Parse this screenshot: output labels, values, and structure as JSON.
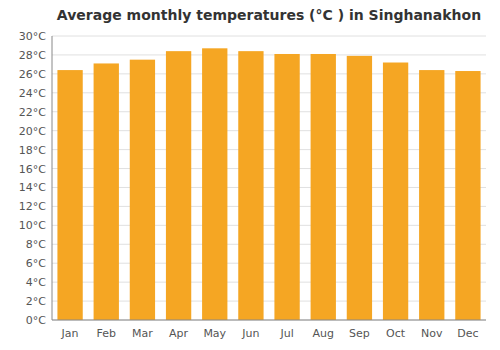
{
  "chart_data": {
    "type": "bar",
    "title": "Average monthly temperatures (°C ) in Singhanakhon",
    "categories": [
      "Jan",
      "Feb",
      "Mar",
      "Apr",
      "May",
      "Jun",
      "Jul",
      "Aug",
      "Sep",
      "Oct",
      "Nov",
      "Dec"
    ],
    "values": [
      26.4,
      27.1,
      27.5,
      28.4,
      28.7,
      28.4,
      28.1,
      28.1,
      27.9,
      27.2,
      26.4,
      26.3
    ],
    "color": "#F5A623",
    "ylim": [
      0,
      30
    ],
    "yticks": [
      {
        "value": 0,
        "label": "0°C"
      },
      {
        "value": 2,
        "label": "2°C"
      },
      {
        "value": 4,
        "label": "4°C"
      },
      {
        "value": 6,
        "label": "6°C"
      },
      {
        "value": 8,
        "label": "8°C"
      },
      {
        "value": 10,
        "label": "10°C"
      },
      {
        "value": 12,
        "label": "12°C"
      },
      {
        "value": 14,
        "label": "14°C"
      },
      {
        "value": 16,
        "label": "16°C"
      },
      {
        "value": 18,
        "label": "18°C"
      },
      {
        "value": 20,
        "label": "20°C"
      },
      {
        "value": 22,
        "label": "22°C"
      },
      {
        "value": 24,
        "label": "24°C"
      },
      {
        "value": 26,
        "label": "26°C"
      },
      {
        "value": 28,
        "label": "28°C"
      },
      {
        "value": 30,
        "label": "30°C"
      }
    ],
    "grid": true
  }
}
